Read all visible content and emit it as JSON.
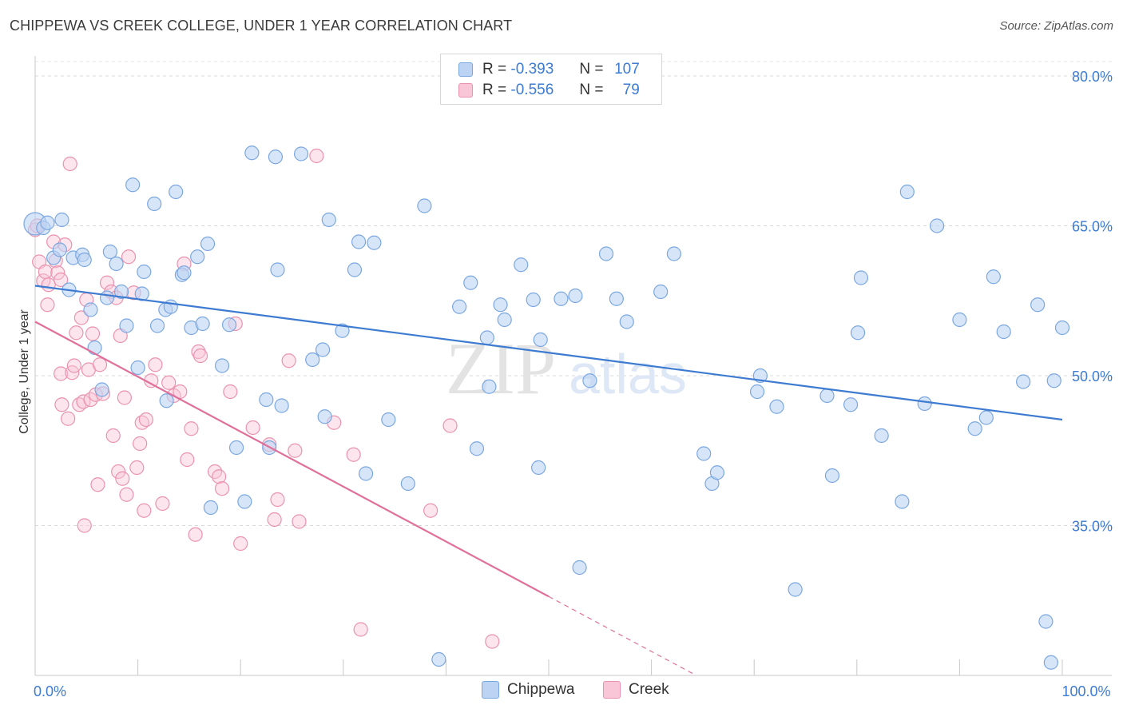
{
  "title": "CHIPPEWA VS CREEK COLLEGE, UNDER 1 YEAR CORRELATION CHART",
  "source": "Source: ZipAtlas.com",
  "watermark": {
    "zip": "ZIP",
    "atlas": "atlas"
  },
  "colors": {
    "blue": "#3d7bd1",
    "blue_fill": "#bcd3f3",
    "blue_stroke": "#7aa7e0",
    "pink": "#e0709a",
    "pink_fill": "#f8c6d6",
    "pink_stroke": "#ea92ae"
  },
  "legend": {
    "rows": [
      {
        "r_label": "R = ",
        "r_value": "-0.393",
        "n_label": "N = ",
        "n_value": "107"
      },
      {
        "r_label": "R = ",
        "r_value": "-0.556",
        "n_label": "N = ",
        "n_value": "79"
      }
    ]
  },
  "bottom_legend": [
    "Chippewa",
    "Creek"
  ],
  "chart_data": {
    "type": "scatter",
    "title": "CHIPPEWA VS CREEK COLLEGE, UNDER 1 YEAR CORRELATION CHART",
    "xlabel": "",
    "ylabel": "College, Under 1 year",
    "xlim": [
      0,
      100
    ],
    "ylim": [
      20,
      82
    ],
    "x_ticks": [
      {
        "value": 0,
        "label": "0.0%"
      },
      {
        "value": 100,
        "label": "100.0%"
      }
    ],
    "y_ticks": [
      {
        "value": 35,
        "label": "35.0%"
      },
      {
        "value": 50,
        "label": "50.0%"
      },
      {
        "value": 65,
        "label": "65.0%"
      },
      {
        "value": 80,
        "label": "80.0%"
      }
    ],
    "series": [
      {
        "name": "Chippewa",
        "r": -0.393,
        "n": 107,
        "trend": {
          "x": [
            0,
            100
          ],
          "y": [
            59.0,
            45.6
          ]
        },
        "points": [
          [
            0,
            65.2
          ],
          [
            0.8,
            64.8
          ],
          [
            1.2,
            65.3
          ],
          [
            1.8,
            61.8
          ],
          [
            2.4,
            62.6
          ],
          [
            2.6,
            65.6
          ],
          [
            3.3,
            58.6
          ],
          [
            3.7,
            61.8
          ],
          [
            4.6,
            62.1
          ],
          [
            4.8,
            61.6
          ],
          [
            5.4,
            56.6
          ],
          [
            5.8,
            52.8
          ],
          [
            6.5,
            48.6
          ],
          [
            7.0,
            57.8
          ],
          [
            7.3,
            62.4
          ],
          [
            7.9,
            61.2
          ],
          [
            8.4,
            58.4
          ],
          [
            8.9,
            55.0
          ],
          [
            9.5,
            69.1
          ],
          [
            10.0,
            50.8
          ],
          [
            10.4,
            58.2
          ],
          [
            10.6,
            60.4
          ],
          [
            11.6,
            67.2
          ],
          [
            11.9,
            55.0
          ],
          [
            12.7,
            56.6
          ],
          [
            12.8,
            47.5
          ],
          [
            13.2,
            56.9
          ],
          [
            13.7,
            68.4
          ],
          [
            14.3,
            60.1
          ],
          [
            14.5,
            60.3
          ],
          [
            15.2,
            54.8
          ],
          [
            15.8,
            61.9
          ],
          [
            16.3,
            55.2
          ],
          [
            16.8,
            63.2
          ],
          [
            17.1,
            36.8
          ],
          [
            18.2,
            51.0
          ],
          [
            18.9,
            55.1
          ],
          [
            19.6,
            42.8
          ],
          [
            20.4,
            37.4
          ],
          [
            21.1,
            72.3
          ],
          [
            22.5,
            47.6
          ],
          [
            22.8,
            42.8
          ],
          [
            23.4,
            71.9
          ],
          [
            23.6,
            60.6
          ],
          [
            24.0,
            47.0
          ],
          [
            25.9,
            72.2
          ],
          [
            27.0,
            51.6
          ],
          [
            28.0,
            52.6
          ],
          [
            28.2,
            45.9
          ],
          [
            28.6,
            65.6
          ],
          [
            29.9,
            54.5
          ],
          [
            31.1,
            60.6
          ],
          [
            31.5,
            63.4
          ],
          [
            32.2,
            40.2
          ],
          [
            33.0,
            63.3
          ],
          [
            34.4,
            45.6
          ],
          [
            36.3,
            39.2
          ],
          [
            37.9,
            67.0
          ],
          [
            39.3,
            21.6
          ],
          [
            41.3,
            56.9
          ],
          [
            42.4,
            59.3
          ],
          [
            43.0,
            42.7
          ],
          [
            44.0,
            53.8
          ],
          [
            44.2,
            48.9
          ],
          [
            45.3,
            57.1
          ],
          [
            45.7,
            55.6
          ],
          [
            47.3,
            61.1
          ],
          [
            48.5,
            57.6
          ],
          [
            49.0,
            40.8
          ],
          [
            49.2,
            53.6
          ],
          [
            51.2,
            57.7
          ],
          [
            52.6,
            58.0
          ],
          [
            53.0,
            30.8
          ],
          [
            54.0,
            49.5
          ],
          [
            55.6,
            62.2
          ],
          [
            56.6,
            57.7
          ],
          [
            57.6,
            55.4
          ],
          [
            60.9,
            58.4
          ],
          [
            62.2,
            62.2
          ],
          [
            65.1,
            42.2
          ],
          [
            65.9,
            39.2
          ],
          [
            66.4,
            40.3
          ],
          [
            70.3,
            48.4
          ],
          [
            70.6,
            50.0
          ],
          [
            72.2,
            46.9
          ],
          [
            74.0,
            28.6
          ],
          [
            77.1,
            48.0
          ],
          [
            77.6,
            40.0
          ],
          [
            79.4,
            47.1
          ],
          [
            80.1,
            54.3
          ],
          [
            80.4,
            59.8
          ],
          [
            82.4,
            44.0
          ],
          [
            84.4,
            37.4
          ],
          [
            84.9,
            68.4
          ],
          [
            86.6,
            47.2
          ],
          [
            87.8,
            65.0
          ],
          [
            90.0,
            55.6
          ],
          [
            91.5,
            44.7
          ],
          [
            92.6,
            45.8
          ],
          [
            93.3,
            59.9
          ],
          [
            94.3,
            54.4
          ],
          [
            96.2,
            49.4
          ],
          [
            97.6,
            57.1
          ],
          [
            98.4,
            25.4
          ],
          [
            98.9,
            21.3
          ],
          [
            99.2,
            49.5
          ],
          [
            100,
            54.8
          ]
        ]
      },
      {
        "name": "Creek",
        "r": -0.556,
        "n": 79,
        "trend": {
          "x": [
            0,
            50
          ],
          "y": [
            55.4,
            27.9
          ]
        },
        "trend_dashed": {
          "x": [
            50,
            64
          ],
          "y": [
            27.9,
            20.2
          ]
        },
        "points": [
          [
            0,
            64.6
          ],
          [
            0.4,
            61.4
          ],
          [
            0.8,
            59.5
          ],
          [
            1.0,
            60.4
          ],
          [
            1.2,
            57.1
          ],
          [
            1.3,
            59.1
          ],
          [
            1.8,
            63.4
          ],
          [
            2.0,
            61.5
          ],
          [
            2.2,
            60.3
          ],
          [
            2.5,
            59.6
          ],
          [
            2.5,
            50.2
          ],
          [
            2.6,
            47.1
          ],
          [
            2.9,
            63.1
          ],
          [
            3.2,
            45.7
          ],
          [
            3.4,
            71.2
          ],
          [
            3.6,
            50.3
          ],
          [
            3.8,
            51.0
          ],
          [
            4.0,
            54.3
          ],
          [
            4.3,
            47.1
          ],
          [
            4.5,
            55.8
          ],
          [
            4.7,
            47.4
          ],
          [
            4.8,
            35.0
          ],
          [
            5.0,
            57.6
          ],
          [
            5.2,
            50.6
          ],
          [
            5.4,
            47.6
          ],
          [
            5.6,
            54.2
          ],
          [
            5.9,
            48.1
          ],
          [
            6.1,
            39.1
          ],
          [
            6.3,
            51.1
          ],
          [
            6.6,
            48.2
          ],
          [
            7.0,
            59.3
          ],
          [
            7.4,
            58.4
          ],
          [
            7.6,
            44.0
          ],
          [
            7.9,
            57.8
          ],
          [
            8.1,
            40.4
          ],
          [
            8.3,
            54.0
          ],
          [
            8.5,
            39.7
          ],
          [
            8.7,
            47.8
          ],
          [
            8.9,
            38.1
          ],
          [
            9.1,
            61.9
          ],
          [
            9.6,
            58.3
          ],
          [
            9.9,
            40.8
          ],
          [
            10.2,
            43.2
          ],
          [
            10.4,
            45.3
          ],
          [
            10.6,
            36.5
          ],
          [
            10.8,
            45.6
          ],
          [
            11.3,
            49.5
          ],
          [
            11.7,
            51.1
          ],
          [
            12.4,
            37.2
          ],
          [
            13.0,
            49.3
          ],
          [
            13.5,
            48.0
          ],
          [
            14.1,
            48.4
          ],
          [
            14.5,
            61.2
          ],
          [
            14.8,
            41.6
          ],
          [
            15.2,
            44.7
          ],
          [
            15.6,
            34.1
          ],
          [
            15.9,
            52.4
          ],
          [
            16.1,
            52.0
          ],
          [
            17.5,
            40.4
          ],
          [
            17.9,
            39.9
          ],
          [
            18.2,
            38.7
          ],
          [
            19.0,
            48.4
          ],
          [
            19.5,
            55.2
          ],
          [
            20.0,
            33.2
          ],
          [
            21.2,
            44.8
          ],
          [
            22.8,
            43.1
          ],
          [
            23.3,
            35.6
          ],
          [
            23.6,
            37.6
          ],
          [
            24.7,
            51.5
          ],
          [
            25.3,
            42.5
          ],
          [
            25.7,
            35.4
          ],
          [
            27.4,
            72.0
          ],
          [
            29.1,
            45.3
          ],
          [
            31.0,
            42.1
          ],
          [
            31.7,
            24.6
          ],
          [
            38.5,
            36.5
          ],
          [
            40.4,
            45.0
          ],
          [
            44.5,
            23.4
          ],
          [
            0.2,
            65.0
          ]
        ]
      }
    ]
  }
}
